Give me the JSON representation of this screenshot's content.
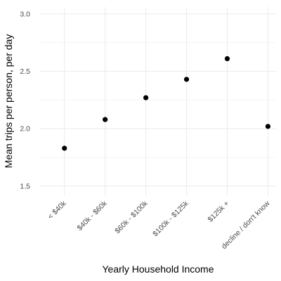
{
  "chart_data": {
    "type": "scatter",
    "title": "",
    "xlabel": "Yearly Household Income",
    "ylabel": "Mean trips per person, per day",
    "categories": [
      "< $40k",
      "$40k - $60k",
      "$60k - $100k",
      "$100k - $125k",
      "$125k +",
      "decline / don't know"
    ],
    "values": [
      1.83,
      2.08,
      2.27,
      2.43,
      2.61,
      2.02
    ],
    "ylim": [
      1.42,
      3.06
    ],
    "yticks": [
      1.5,
      2.0,
      2.5,
      3.0
    ],
    "ytick_labels": [
      "1.5",
      "2.0",
      "2.5",
      "3.0"
    ],
    "grid": true,
    "point_color": "#000000"
  }
}
